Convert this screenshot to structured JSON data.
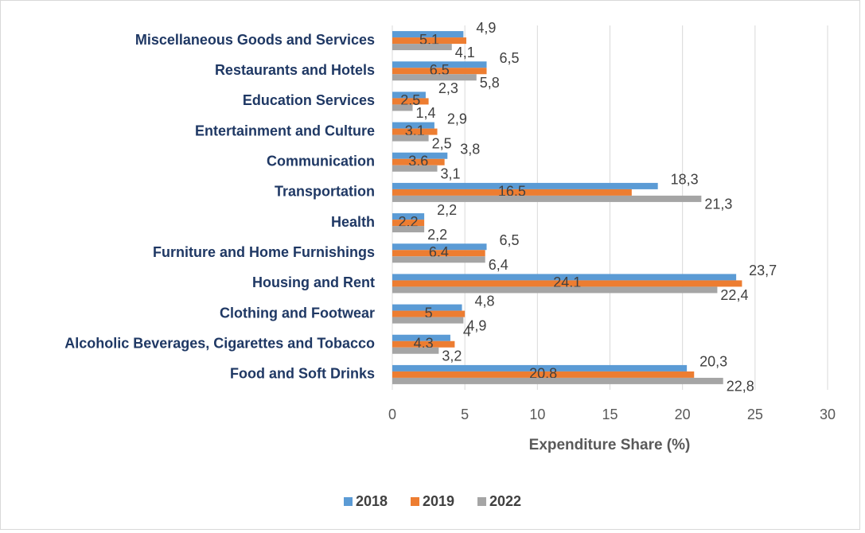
{
  "chart_data": {
    "type": "bar",
    "orientation": "horizontal",
    "categories": [
      "Miscellaneous Goods and Services",
      "Restaurants and Hotels",
      "Education Services",
      "Entertainment and Culture",
      "Communication",
      "Transportation",
      "Health",
      "Furniture and Home Furnishings",
      "Housing and Rent",
      "Clothing and Footwear",
      "Alcoholic Beverages, Cigarettes and Tobacco",
      "Food and Soft Drinks"
    ],
    "series": [
      {
        "name": "2018",
        "color": "#5b9bd5",
        "values": [
          4.9,
          6.5,
          2.3,
          2.9,
          3.8,
          18.3,
          2.2,
          6.5,
          23.7,
          4.8,
          4,
          20.3
        ],
        "value_labels": [
          "4,9",
          "6,5",
          "2,3",
          "2,9",
          "3,8",
          "18,3",
          "2,2",
          "6,5",
          "23,7",
          "4,8",
          "4",
          "20,3"
        ]
      },
      {
        "name": "2019",
        "color": "#ed7d31",
        "values": [
          5.1,
          6.5,
          2.5,
          3.1,
          3.6,
          16.5,
          2.2,
          6.4,
          24.1,
          5,
          4.3,
          20.8
        ],
        "value_labels": [
          "5,1",
          "6,5",
          "2,5",
          "3,1",
          "3,6",
          "16,5",
          "2,2",
          "6,4",
          "24,1",
          "5",
          "4,3",
          "20,8"
        ]
      },
      {
        "name": "2022",
        "color": "#a5a5a5",
        "values": [
          4.1,
          5.8,
          1.4,
          2.5,
          3.1,
          21.3,
          2.2,
          6.4,
          22.4,
          4.9,
          3.2,
          22.8
        ],
        "value_labels": [
          "4,1",
          "5,8",
          "1,4",
          "2,5",
          "3,1",
          "21,3",
          "2,2",
          "6,4",
          "22,4",
          "4,9",
          "3,2",
          "22,8"
        ]
      }
    ],
    "xlabel": "Expenditure Share (%)",
    "xlim": [
      0,
      30
    ],
    "xticks": [
      0,
      5,
      10,
      15,
      20,
      25,
      30
    ],
    "grid": true,
    "legend": "bottom"
  }
}
